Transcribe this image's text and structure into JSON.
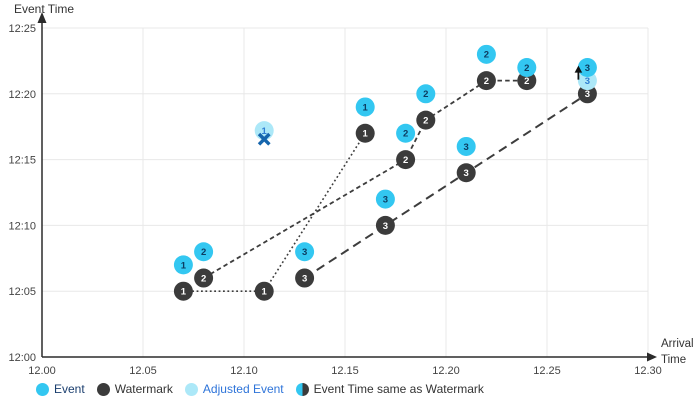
{
  "chart_data": {
    "type": "scatter",
    "title": "",
    "y_axis": {
      "title": "Event Time",
      "tick_labels": [
        "12:00",
        "12:05",
        "12:10",
        "12:15",
        "12:20",
        "12:25"
      ],
      "tick_minutes": [
        0,
        5,
        10,
        15,
        20,
        25
      ],
      "range_minutes": [
        0,
        25
      ]
    },
    "x_axis": {
      "title_line1": "Arrival",
      "title_line2": "Time",
      "tick_labels": [
        "12.00",
        "12.05",
        "12.10",
        "12.15",
        "12.20",
        "12.25",
        "12.30"
      ],
      "tick_values": [
        12.0,
        12.05,
        12.1,
        12.15,
        12.2,
        12.25,
        12.3
      ],
      "range": [
        12.0,
        12.3
      ]
    },
    "grid": true,
    "streams": [
      {
        "id": "1",
        "line_style": "dotted",
        "events": [
          [
            12.07,
            7
          ],
          [
            12.16,
            19
          ]
        ],
        "watermarks": [
          [
            12.07,
            5
          ],
          [
            12.11,
            5
          ],
          [
            12.16,
            17
          ]
        ],
        "adjusted": [
          {
            "arrival": 12.11,
            "minute": 17.2,
            "marker": "x",
            "marker_minute": 16.55
          }
        ]
      },
      {
        "id": "2",
        "line_style": "dashed",
        "events": [
          [
            12.08,
            8
          ],
          [
            12.18,
            17
          ],
          [
            12.19,
            20
          ],
          [
            12.22,
            23
          ],
          [
            12.24,
            22
          ]
        ],
        "watermarks": [
          [
            12.08,
            6
          ],
          [
            12.18,
            15
          ],
          [
            12.19,
            18
          ],
          [
            12.22,
            21
          ],
          [
            12.24,
            21
          ]
        ],
        "adjusted": []
      },
      {
        "id": "3",
        "line_style": "long-dash",
        "events": [
          [
            12.13,
            8
          ],
          [
            12.17,
            12
          ],
          [
            12.21,
            16
          ],
          [
            12.27,
            22
          ]
        ],
        "watermarks": [
          [
            12.13,
            6
          ],
          [
            12.17,
            10
          ],
          [
            12.21,
            14
          ],
          [
            12.27,
            20
          ]
        ],
        "adjusted": [
          {
            "arrival": 12.27,
            "minute": 21,
            "marker": "up-arrow"
          }
        ]
      }
    ],
    "legend_position": "bottom"
  },
  "legend": {
    "items": [
      {
        "label": "Event",
        "type": "event"
      },
      {
        "label": "Watermark",
        "type": "watermark"
      },
      {
        "label": "Adjusted Event",
        "type": "adjusted-event"
      },
      {
        "label": "Event Time same as Watermark",
        "type": "event-time-same-as-watermark"
      }
    ]
  },
  "colors": {
    "event": "#33c7f1",
    "watermark": "#3b3b3b",
    "adjusted_event": "#ace8f8",
    "event_digit": "#0d3c61",
    "adjusted_digit": "#2f7ed2",
    "watermark_digit": "#ffffff",
    "x_marker": "#1565ad",
    "line": "#3d3d3d",
    "grid": "#e8e8e8",
    "axis": "#2b2b2b",
    "tick_text": "#444444"
  }
}
